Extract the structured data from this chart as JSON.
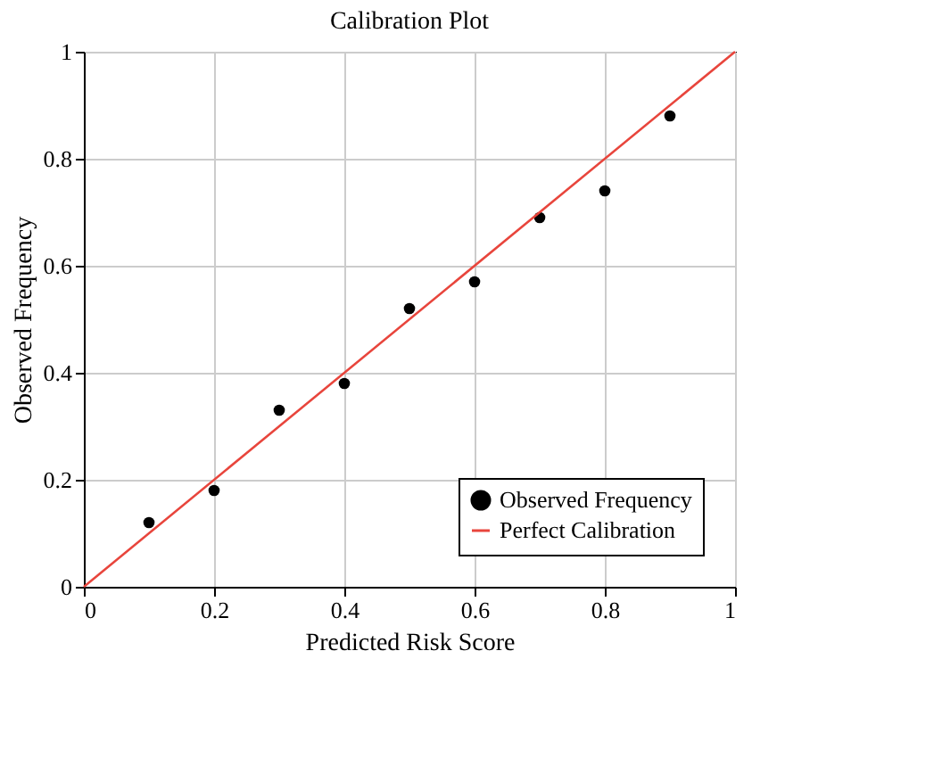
{
  "chart_data": {
    "type": "scatter",
    "title": "Calibration Plot",
    "xlabel": "Predicted Risk Score",
    "ylabel": "Observed Frequency",
    "x": [
      0.1,
      0.2,
      0.3,
      0.4,
      0.5,
      0.6,
      0.7,
      0.8,
      0.9
    ],
    "series": [
      {
        "name": "Observed Frequency",
        "color": "#000000",
        "marker": "circle",
        "values": [
          0.12,
          0.18,
          0.33,
          0.38,
          0.52,
          0.57,
          0.69,
          0.74,
          0.88
        ]
      },
      {
        "name": "Perfect Calibration",
        "type": "line",
        "color": "#e8453c",
        "x": [
          0,
          1
        ],
        "values": [
          0,
          1
        ]
      }
    ],
    "xlim": [
      0,
      1
    ],
    "ylim": [
      0,
      1
    ],
    "xticks": [
      0,
      0.2,
      0.4,
      0.6,
      0.8,
      1
    ],
    "yticks": [
      0,
      0.2,
      0.4,
      0.6,
      0.8,
      1
    ],
    "grid": true,
    "legend": "bottom right"
  }
}
